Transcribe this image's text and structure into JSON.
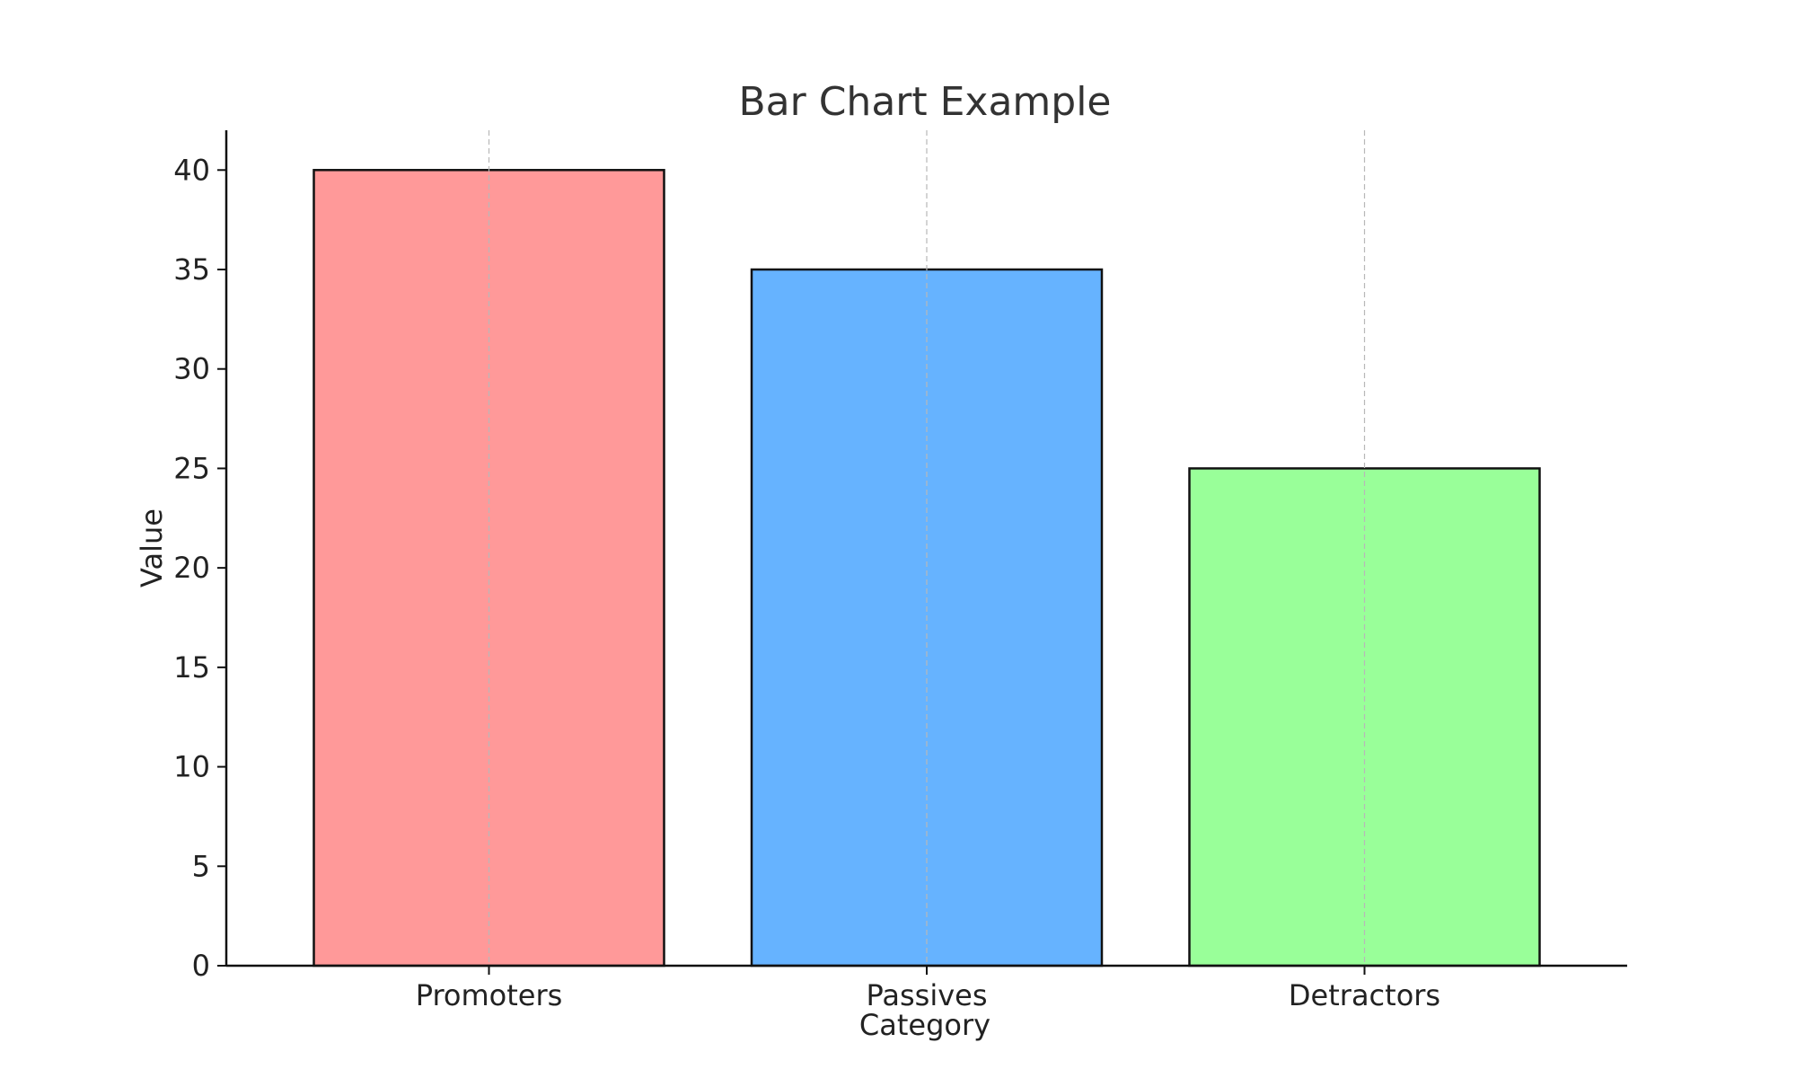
{
  "chart_data": {
    "type": "bar",
    "title": "Bar Chart Example",
    "xlabel": "Category",
    "ylabel": "Value",
    "categories": [
      "Promoters",
      "Passives",
      "Detractors"
    ],
    "values": [
      40,
      35,
      25
    ],
    "colors": [
      "#ff9999",
      "#66b3ff",
      "#99ff99"
    ],
    "edge_color": "#111111",
    "ylim": [
      0,
      42
    ],
    "yticks": [
      0,
      5,
      10,
      15,
      20,
      25,
      30,
      35,
      40
    ],
    "grid": "x-axis dashed",
    "legend": "none"
  }
}
